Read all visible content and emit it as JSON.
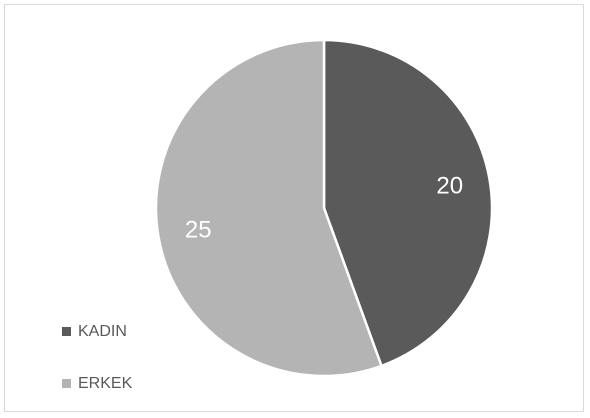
{
  "chart_data": {
    "type": "pie",
    "categories": [
      "KADIN",
      "ERKEK"
    ],
    "values": [
      20,
      25
    ],
    "colors": [
      "#5a5a5a",
      "#b4b4b4"
    ],
    "data_labels": [
      "20",
      "25"
    ],
    "start_angle_deg": 0,
    "direction": "clockwise",
    "legend_position": "bottom-left"
  },
  "legend": {
    "items": [
      {
        "label": "KADIN",
        "color": "#5a5a5a"
      },
      {
        "label": "ERKEK",
        "color": "#b4b4b4"
      }
    ]
  }
}
